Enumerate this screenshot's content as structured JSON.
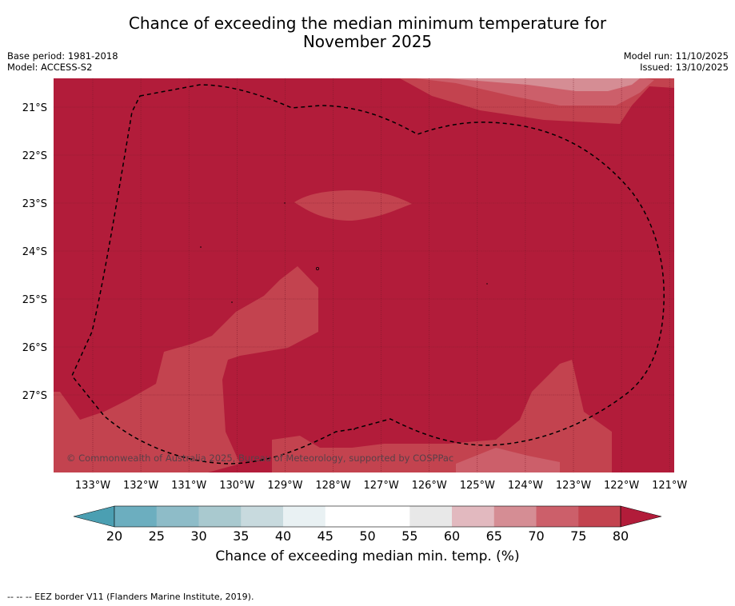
{
  "header": {
    "title_line1": "Chance of exceeding the median minimum temperature for",
    "title_line2": "November 2025",
    "base_period": "Base period: 1981-2018",
    "model": "Model: ACCESS-S2",
    "model_run": "Model run: 11/10/2025",
    "issued": "Issued: 13/10/2025"
  },
  "map": {
    "lat_labels": [
      "21°S",
      "22°S",
      "23°S",
      "24°S",
      "25°S",
      "26°S",
      "27°S"
    ],
    "lon_labels": [
      "133°W",
      "132°W",
      "131°W",
      "130°W",
      "129°W",
      "128°W",
      "127°W",
      "126°W",
      "125°W",
      "124°W",
      "123°W",
      "122°W",
      "121°W"
    ],
    "copyright": "© Commonwealth of Australia 2025, Bureau of Meteorology, supported by COSPPac",
    "fill_colors": {
      "above_80": "#b21c3a",
      "c75_80": "#c3434f",
      "c70_75": "#cc5f6a",
      "c65_70": "#d58d94"
    }
  },
  "colorbar": {
    "ticks": [
      "20",
      "25",
      "30",
      "35",
      "40",
      "45",
      "50",
      "55",
      "60",
      "65",
      "70",
      "75",
      "80"
    ],
    "label": "Chance of exceeding median min. temp. (%)",
    "low_color": "#4b9fb2",
    "high_color": "#b21c3a",
    "segment_colors": [
      "#6caebf",
      "#8ebcc8",
      "#a9c9cf",
      "#c8dade",
      "#e9f1f3",
      "#ffffff",
      "#ffffff",
      "#e8e8e8",
      "#e2b9bf",
      "#d58d94",
      "#cc5f6a",
      "#c3434f"
    ]
  },
  "footnote": "--  --  -- EEZ border V11 (Flanders Marine Institute, 2019)."
}
